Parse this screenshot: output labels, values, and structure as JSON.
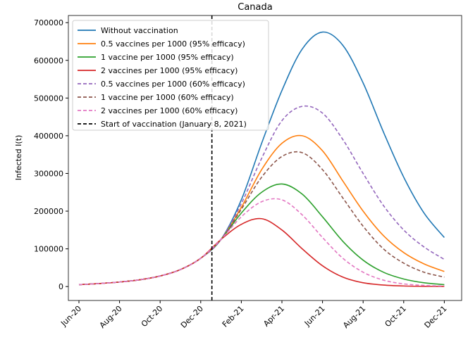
{
  "chart_data": {
    "type": "line",
    "title": "Canada",
    "y_label": "Infected I(t)",
    "x": [
      "Jun-20",
      "Jul-20",
      "Aug-20",
      "Sep-20",
      "Oct-20",
      "Nov-20",
      "Dec-20",
      "Jan-21",
      "Feb-21",
      "Mar-21",
      "Apr-21",
      "May-21",
      "Jun-21",
      "Jul-21",
      "Aug-21",
      "Sep-21",
      "Oct-21",
      "Nov-21",
      "Dec-21"
    ],
    "xticks": [
      "Jun-20",
      "Aug-20",
      "Oct-20",
      "Dec-20",
      "Feb-21",
      "Apr-21",
      "Jun-21",
      "Aug-21",
      "Oct-21",
      "Dec-21"
    ],
    "ylim": [
      -37000,
      719000
    ],
    "yticks": [
      0,
      100000,
      200000,
      300000,
      400000,
      500000,
      600000,
      700000
    ],
    "legend": "upper left",
    "series": [
      {
        "name": "Without vaccination",
        "color": "#1f77b4",
        "dash": false,
        "values": [
          5000,
          8000,
          12000,
          18000,
          28000,
          45000,
          75000,
          125000,
          230000,
          380000,
          520000,
          630000,
          675000,
          640000,
          540000,
          410000,
          290000,
          195000,
          130000
        ]
      },
      {
        "name": "0.5 vaccines per 1000 (95% efficacy)",
        "color": "#ff7f0e",
        "dash": false,
        "values": [
          5000,
          8000,
          12000,
          18000,
          28000,
          45000,
          75000,
          125000,
          210000,
          310000,
          380000,
          400000,
          360000,
          280000,
          200000,
          135000,
          90000,
          60000,
          40000
        ]
      },
      {
        "name": "1 vaccine per 1000 (95% efficacy)",
        "color": "#2ca02c",
        "dash": false,
        "values": [
          5000,
          8000,
          12000,
          18000,
          28000,
          45000,
          75000,
          125000,
          195000,
          250000,
          272000,
          245000,
          185000,
          120000,
          70000,
          38000,
          20000,
          10000,
          5000
        ]
      },
      {
        "name": "2 vaccines per 1000 (95% efficacy)",
        "color": "#d62728",
        "dash": false,
        "values": [
          5000,
          8000,
          12000,
          18000,
          28000,
          45000,
          75000,
          125000,
          165000,
          180000,
          150000,
          100000,
          55000,
          25000,
          10000,
          4000,
          1500,
          500,
          200
        ]
      },
      {
        "name": "0.5 vaccines per 1000 (60% efficacy)",
        "color": "#9467bd",
        "dash": true,
        "values": [
          5000,
          8000,
          12000,
          18000,
          28000,
          45000,
          75000,
          125000,
          220000,
          340000,
          440000,
          478000,
          460000,
          390000,
          300000,
          215000,
          150000,
          105000,
          72000
        ]
      },
      {
        "name": "1 vaccine per 1000 (60% efficacy)",
        "color": "#8c564b",
        "dash": true,
        "values": [
          5000,
          8000,
          12000,
          18000,
          28000,
          45000,
          75000,
          125000,
          205000,
          290000,
          345000,
          355000,
          310000,
          235000,
          160000,
          100000,
          62000,
          38000,
          25000
        ]
      },
      {
        "name": "2 vaccines per 1000 (60% efficacy)",
        "color": "#e377c2",
        "dash": true,
        "values": [
          5000,
          8000,
          12000,
          18000,
          28000,
          45000,
          75000,
          125000,
          185000,
          225000,
          230000,
          190000,
          130000,
          75000,
          38000,
          17000,
          7000,
          3000,
          1200
        ]
      }
    ],
    "vline": {
      "name": "Start of vaccination (January 8, 2021)",
      "x": "Dec-20",
      "color": "#000000"
    }
  }
}
